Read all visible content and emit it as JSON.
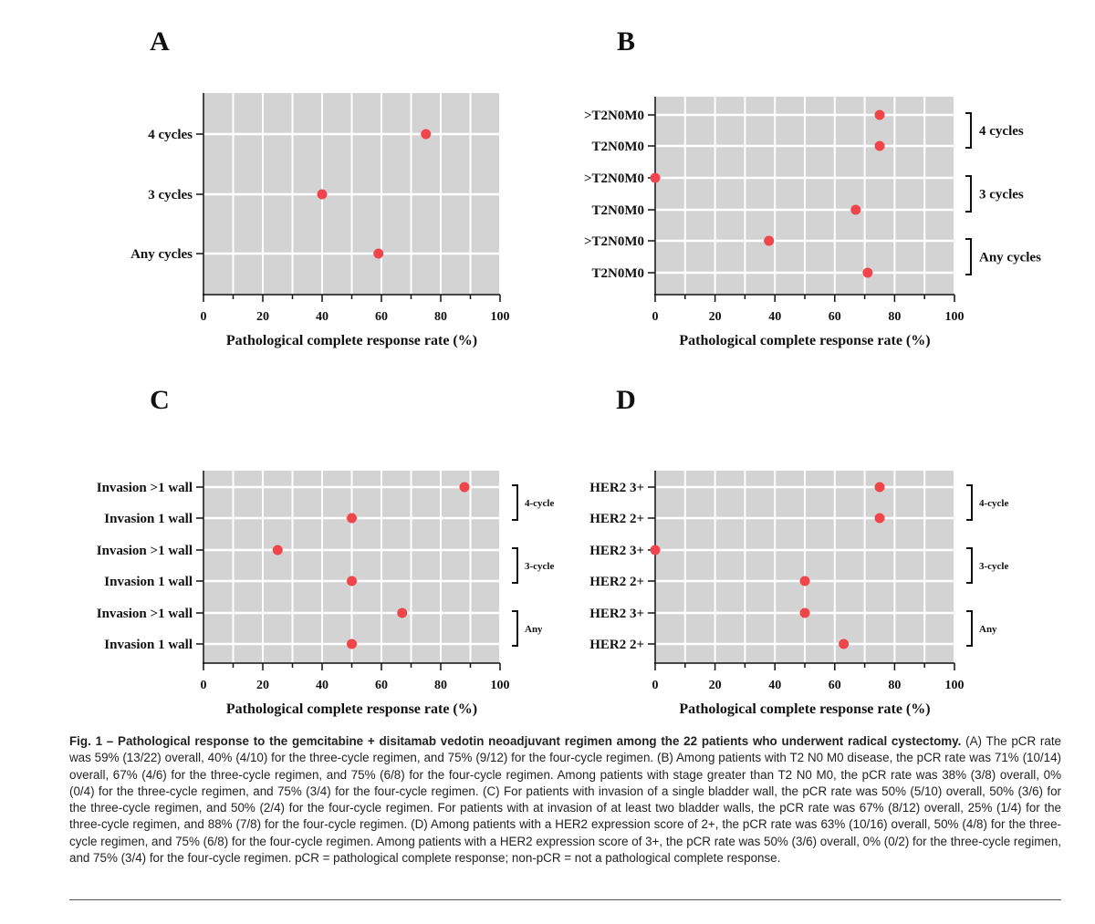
{
  "chart_data": [
    {
      "type": "scatter",
      "panel": "A",
      "categories": [
        "4 cycles",
        "3 cycles",
        "Any cycles"
      ],
      "values": [
        75,
        40,
        59
      ],
      "groups": [],
      "xlabel": "Pathological complete response rate (%)",
      "xlim": [
        0,
        100
      ],
      "xticks": [
        0,
        20,
        40,
        60,
        80,
        100
      ],
      "grid": true
    },
    {
      "type": "scatter",
      "panel": "B",
      "categories": [
        ">T2N0M0",
        "T2N0M0",
        ">T2N0M0",
        "T2N0M0",
        ">T2N0M0",
        "T2N0M0"
      ],
      "values": [
        75,
        75,
        0,
        67,
        38,
        71
      ],
      "groups": [
        {
          "label": "4 cycles",
          "rows": [
            0,
            1
          ]
        },
        {
          "label": "3 cycles",
          "rows": [
            2,
            3
          ]
        },
        {
          "label": "Any cycles",
          "rows": [
            4,
            5
          ]
        }
      ],
      "xlabel": "Pathological complete response rate (%)",
      "xlim": [
        0,
        100
      ],
      "xticks": [
        0,
        20,
        40,
        60,
        80,
        100
      ],
      "grid": true
    },
    {
      "type": "scatter",
      "panel": "C",
      "categories": [
        "Invasion >1 wall",
        "Invasion 1 wall",
        "Invasion >1 wall",
        "Invasion 1 wall",
        "Invasion >1 wall",
        "Invasion 1 wall"
      ],
      "values": [
        88,
        50,
        25,
        50,
        67,
        50
      ],
      "groups": [
        {
          "label": "4-cycle",
          "rows": [
            0,
            1
          ]
        },
        {
          "label": "3-cycle",
          "rows": [
            2,
            3
          ]
        },
        {
          "label": "Any",
          "rows": [
            4,
            5
          ]
        }
      ],
      "xlabel": "Pathological complete response rate (%)",
      "xlim": [
        0,
        100
      ],
      "xticks": [
        0,
        20,
        40,
        60,
        80,
        100
      ],
      "grid": true
    },
    {
      "type": "scatter",
      "panel": "D",
      "categories": [
        "HER2 3+",
        "HER2 2+",
        "HER2 3+",
        "HER2 2+",
        "HER2 3+",
        "HER2 2+"
      ],
      "values": [
        75,
        75,
        0,
        50,
        50,
        63
      ],
      "groups": [
        {
          "label": "4-cycle",
          "rows": [
            0,
            1
          ]
        },
        {
          "label": "3-cycle",
          "rows": [
            2,
            3
          ]
        },
        {
          "label": "Any",
          "rows": [
            4,
            5
          ]
        }
      ],
      "xlabel": "Pathological complete response rate (%)",
      "xlim": [
        0,
        100
      ],
      "xticks": [
        0,
        20,
        40,
        60,
        80,
        100
      ],
      "grid": true
    }
  ],
  "colors": {
    "plot_bg": "#d3d3d3",
    "grid": "#ffffff",
    "point": "#f0464b",
    "axis": "#111111"
  },
  "caption": {
    "lead": "Fig. 1 – Pathological response to the gemcitabine + disitamab vedotin neoadjuvant regimen among the 22 patients who underwent radical cystectomy.",
    "body": " (A) The pCR rate was 59% (13/22) overall, 40% (4/10) for the three-cycle regimen, and 75% (9/12) for the four-cycle regimen. (B) Among patients with T2 N0 M0 disease, the pCR rate was 71% (10/14) overall, 67% (4/6) for the three-cycle regimen, and 75% (6/8) for the four-cycle regimen. Among patients with stage greater than T2 N0 M0, the pCR rate was 38% (3/8) overall, 0% (0/4) for the three-cycle regimen, and 75% (3/4) for the four-cycle regimen. (C) For patients with invasion of a single bladder wall, the pCR rate was 50% (5/10) overall, 50% (3/6) for the three-cycle regimen, and 50% (2/4) for the four-cycle regimen. For patients with at invasion of at least two bladder walls, the pCR rate was 67% (8/12) overall, 25% (1/4) for the three-cycle regimen, and 88% (7/8) for the four-cycle regimen. (D) Among patients with a HER2 expression score of 2+, the pCR rate was 63% (10/16) overall, 50% (4/8) for the three-cycle regimen, and 75% (6/8) for the four-cycle regimen. Among patients with a HER2 expression score of 3+, the pCR rate was 50% (3/6) overall, 0% (0/2) for the three-cycle regimen, and 75% (3/4) for the four-cycle regimen. pCR = pathological complete response; non-pCR = not a pathological complete response."
  }
}
